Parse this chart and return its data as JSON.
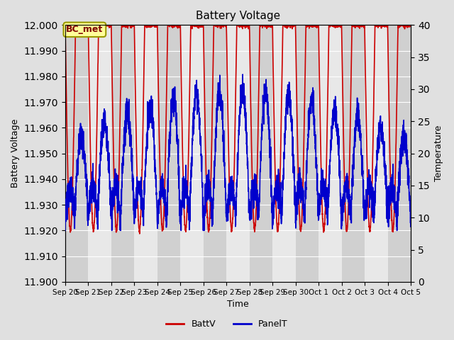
{
  "title": "Battery Voltage",
  "xlabel": "Time",
  "ylabel_left": "Battery Voltage",
  "ylabel_right": "Temperature",
  "ylim_left": [
    11.9,
    12.0
  ],
  "ylim_right": [
    0,
    40
  ],
  "yticks_left": [
    11.9,
    11.91,
    11.92,
    11.93,
    11.94,
    11.95,
    11.96,
    11.97,
    11.98,
    11.99,
    12.0
  ],
  "yticks_right": [
    0,
    5,
    10,
    15,
    20,
    25,
    30,
    35,
    40
  ],
  "bg_color": "#e0e0e0",
  "plot_bg_color": "#e0e0e0",
  "battv_color": "#cc0000",
  "panelt_color": "#0000cc",
  "grid_color": "#ffffff",
  "band_dark": "#d0d0d0",
  "band_light": "#e8e8e8",
  "annotation_text": "BC_met",
  "annotation_fg": "#800000",
  "annotation_bg": "#ffff99",
  "annotation_border": "#999900",
  "legend_battv": "BattV",
  "legend_panelt": "PanelT",
  "num_points": 3000,
  "seed": 42
}
